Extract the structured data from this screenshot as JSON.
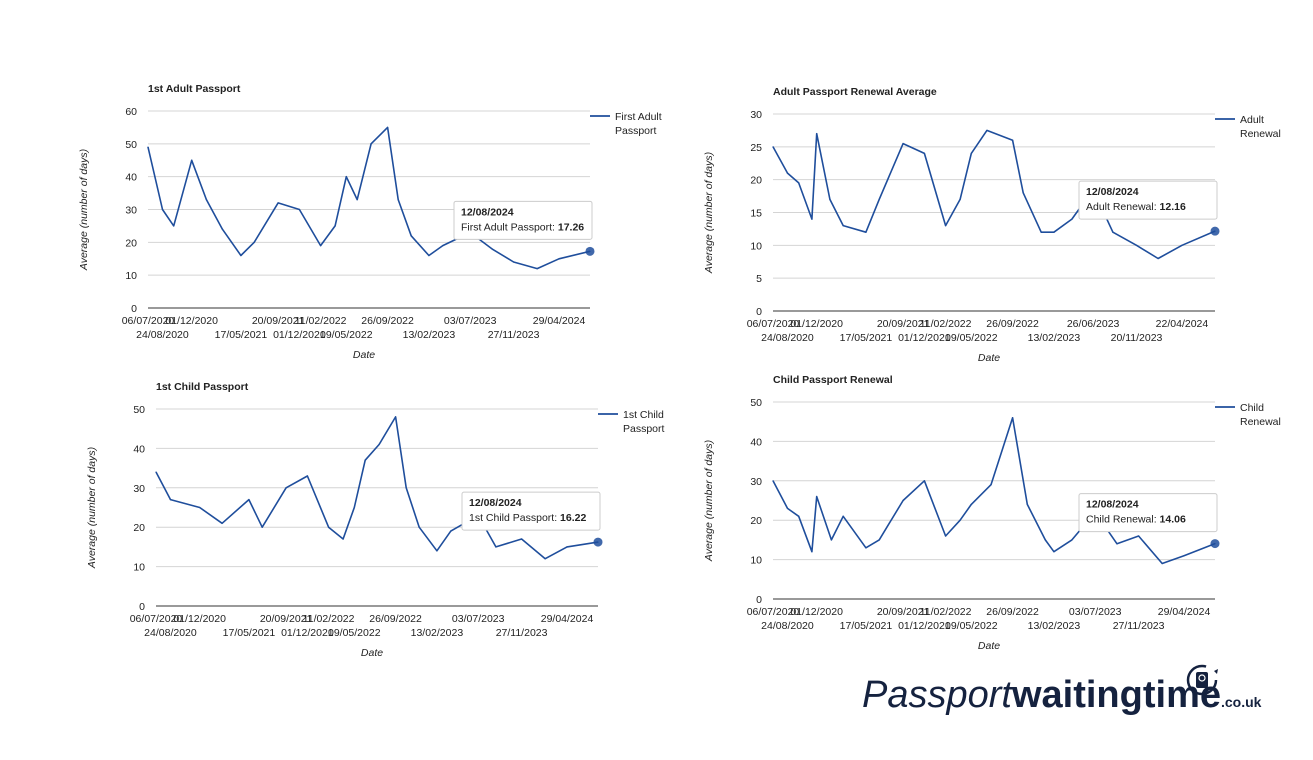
{
  "chart_data": [
    {
      "type": "line",
      "title": "1st Adult Passport",
      "xlabel": "Date",
      "ylabel": "Average (number of days)",
      "ylim": [
        0,
        60
      ],
      "yticks": [
        0,
        10,
        20,
        30,
        40,
        50,
        60
      ],
      "legend_position": "top-right",
      "x_tick_labels_row1": [
        "06/07/2020",
        "01/12/2020",
        "20/09/2021",
        "11/02/2022",
        "26/09/2022",
        "03/07/2023",
        "29/04/2024"
      ],
      "x_tick_labels_row2": [
        "24/08/2020",
        "17/05/2021",
        "01/12/2021",
        "09/05/2022",
        "13/02/2023",
        "27/11/2023"
      ],
      "series": [
        {
          "name": "First Adult Passport",
          "color": "#1f4e9c",
          "x": [
            "06/07/2020",
            "24/08/2020",
            "01/10/2020",
            "01/12/2020",
            "20/01/2021",
            "15/03/2021",
            "17/05/2021",
            "01/07/2021",
            "20/09/2021",
            "01/12/2021",
            "11/02/2022",
            "01/04/2022",
            "09/05/2022",
            "15/06/2022",
            "01/08/2022",
            "26/09/2022",
            "01/11/2022",
            "15/12/2022",
            "13/02/2023",
            "01/04/2023",
            "03/07/2023",
            "15/09/2023",
            "27/11/2023",
            "15/02/2024",
            "29/04/2024",
            "12/08/2024"
          ],
          "values": [
            49,
            30,
            25,
            45,
            33,
            24,
            16,
            20,
            32,
            30,
            19,
            25,
            40,
            33,
            50,
            55,
            33,
            22,
            16,
            19,
            23,
            18,
            14,
            12,
            15,
            17.26
          ]
        }
      ],
      "tooltip": {
        "date": "12/08/2024",
        "label": "First Adult Passport:",
        "value": "17.26"
      }
    },
    {
      "type": "line",
      "title": "Adult Passport Renewal Average",
      "xlabel": "Date",
      "ylabel": "Average (number of days)",
      "ylim": [
        0,
        30
      ],
      "yticks": [
        0,
        5,
        10,
        15,
        20,
        25,
        30
      ],
      "legend_position": "top-right",
      "x_tick_labels_row1": [
        "06/07/2020",
        "01/12/2020",
        "20/09/2021",
        "11/02/2022",
        "26/09/2022",
        "26/06/2023",
        "22/04/2024"
      ],
      "x_tick_labels_row2": [
        "24/08/2020",
        "17/05/2021",
        "01/12/2021",
        "09/05/2022",
        "13/02/2023",
        "20/11/2023"
      ],
      "series": [
        {
          "name": "Adult Renewal",
          "color": "#1f4e9c",
          "x": [
            "06/07/2020",
            "24/08/2020",
            "01/10/2020",
            "15/11/2020",
            "01/12/2020",
            "15/01/2021",
            "01/03/2021",
            "17/05/2021",
            "01/07/2021",
            "20/09/2021",
            "01/12/2021",
            "11/02/2022",
            "01/04/2022",
            "09/05/2022",
            "01/07/2022",
            "26/09/2022",
            "01/11/2022",
            "01/01/2023",
            "13/02/2023",
            "15/04/2023",
            "26/06/2023",
            "01/09/2023",
            "20/11/2023",
            "01/02/2024",
            "22/04/2024",
            "12/08/2024"
          ],
          "values": [
            25,
            21,
            19.5,
            14,
            27,
            17,
            13,
            12,
            17,
            25.5,
            24,
            13,
            17,
            24,
            27.5,
            26,
            18,
            12,
            12,
            14,
            18.5,
            12,
            10,
            8,
            10,
            12.16
          ]
        }
      ],
      "tooltip": {
        "date": "12/08/2024",
        "label": "Adult Renewal:",
        "value": "12.16"
      }
    },
    {
      "type": "line",
      "title": "1st Child Passport",
      "xlabel": "Date",
      "ylabel": "Average (number of days)",
      "ylim": [
        0,
        50
      ],
      "yticks": [
        0,
        10,
        20,
        30,
        40,
        50
      ],
      "legend_position": "top-right",
      "x_tick_labels_row1": [
        "06/07/2020",
        "01/12/2020",
        "20/09/2021",
        "11/02/2022",
        "26/09/2022",
        "03/07/2023",
        "29/04/2024"
      ],
      "x_tick_labels_row2": [
        "24/08/2020",
        "17/05/2021",
        "01/12/2021",
        "09/05/2022",
        "13/02/2023",
        "27/11/2023"
      ],
      "series": [
        {
          "name": "1st Child Passport",
          "color": "#1f4e9c",
          "x": [
            "06/07/2020",
            "24/08/2020",
            "01/12/2020",
            "15/02/2021",
            "17/05/2021",
            "01/07/2021",
            "20/09/2021",
            "01/12/2021",
            "11/02/2022",
            "01/04/2022",
            "09/05/2022",
            "15/06/2022",
            "01/08/2022",
            "26/09/2022",
            "01/11/2022",
            "15/12/2022",
            "13/02/2023",
            "01/04/2023",
            "03/07/2023",
            "01/09/2023",
            "27/11/2023",
            "15/02/2024",
            "29/04/2024",
            "12/08/2024"
          ],
          "values": [
            34,
            27,
            25,
            21,
            27,
            20,
            30,
            33,
            20,
            17,
            25,
            37,
            41,
            48,
            30,
            20,
            14,
            19,
            23,
            15,
            17,
            12,
            15,
            16.22
          ]
        }
      ],
      "tooltip": {
        "date": "12/08/2024",
        "label": "1st Child Passport:",
        "value": "16.22"
      }
    },
    {
      "type": "line",
      "title": "Child Passport Renewal",
      "xlabel": "Date",
      "ylabel": "Average (number of days)",
      "ylim": [
        0,
        50
      ],
      "yticks": [
        0,
        10,
        20,
        30,
        40,
        50
      ],
      "legend_position": "top-right",
      "x_tick_labels_row1": [
        "06/07/2020",
        "01/12/2020",
        "20/09/2021",
        "11/02/2022",
        "26/09/2022",
        "03/07/2023",
        "29/04/2024"
      ],
      "x_tick_labels_row2": [
        "24/08/2020",
        "17/05/2021",
        "01/12/2021",
        "09/05/2022",
        "13/02/2023",
        "27/11/2023"
      ],
      "series": [
        {
          "name": "Child Renewal",
          "color": "#1f4e9c",
          "x": [
            "06/07/2020",
            "24/08/2020",
            "01/10/2020",
            "15/11/2020",
            "01/12/2020",
            "20/01/2021",
            "01/03/2021",
            "17/05/2021",
            "01/07/2021",
            "20/09/2021",
            "01/12/2021",
            "11/02/2022",
            "01/04/2022",
            "09/05/2022",
            "15/07/2022",
            "26/09/2022",
            "15/11/2022",
            "15/01/2023",
            "13/02/2023",
            "15/04/2023",
            "03/07/2023",
            "15/09/2023",
            "27/11/2023",
            "15/02/2024",
            "29/04/2024",
            "12/08/2024"
          ],
          "values": [
            30,
            23,
            21,
            12,
            26,
            15,
            21,
            13,
            15,
            25,
            30,
            16,
            20,
            24,
            29,
            46,
            24,
            15,
            12,
            15,
            22,
            14,
            16,
            9,
            11,
            14.06
          ]
        }
      ],
      "tooltip": {
        "date": "12/08/2024",
        "label": "Child Renewal:",
        "value": "14.06"
      }
    }
  ],
  "logo": {
    "part1": "Passport",
    "part2": "waitingtime",
    "part3": ".co.uk"
  }
}
